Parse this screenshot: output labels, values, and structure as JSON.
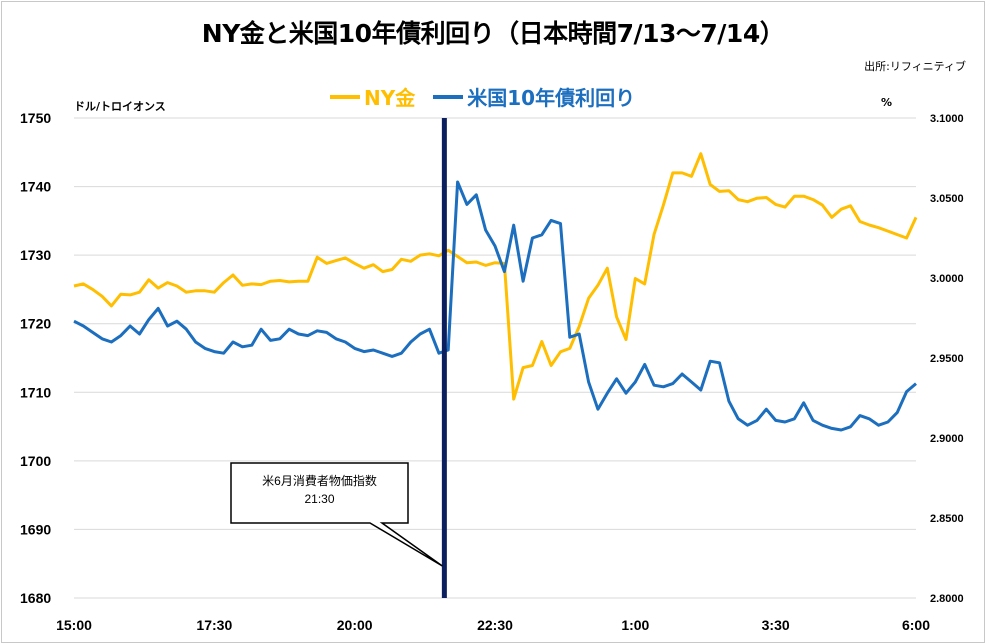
{
  "title": "NY金と米国10年債利回り（日本時間7/13～7/14）",
  "source": "出所:リフィニティブ",
  "left_unit": "ドル/トロイオンス",
  "right_unit": "%",
  "annotation": {
    "line1": "米6月消費者物価指数",
    "line2": "21:30",
    "time_index": 39
  },
  "colors": {
    "gold": "#FFBE00",
    "yield": "#1C6EBE",
    "event_line": "#0B1F5E"
  },
  "chart_data": {
    "type": "line",
    "title": "NY金と米国10年債利回り（日本時間7/13～7/14）",
    "x_ticks": [
      "15:00",
      "17:30",
      "20:00",
      "22:30",
      "1:00",
      "3:30",
      "6:00"
    ],
    "x_tick_positions": [
      0,
      15,
      30,
      45,
      60,
      75,
      90
    ],
    "x_range": [
      0,
      90
    ],
    "x_note": "10-minute intervals from 15:00 (index 0) to 6:00 (index 90)",
    "y_left": {
      "label": "ドル/トロイオンス",
      "range": [
        1680,
        1750
      ],
      "ticks": [
        "1680",
        "1690",
        "1700",
        "1710",
        "1720",
        "1730",
        "1740",
        "1750"
      ]
    },
    "y_right": {
      "label": "%",
      "range": [
        2.8,
        3.1
      ],
      "ticks": [
        "2.8000",
        "2.8500",
        "2.9000",
        "2.9500",
        "3.0000",
        "3.0500",
        "3.1000"
      ]
    },
    "series": [
      {
        "name": "NY金",
        "axis": "left",
        "values": [
          1725.5,
          1725.8,
          1725.0,
          1724.0,
          1722.6,
          1724.3,
          1724.2,
          1724.6,
          1726.4,
          1725.2,
          1726.0,
          1725.5,
          1724.6,
          1724.8,
          1724.8,
          1724.6,
          1726.0,
          1727.1,
          1725.6,
          1725.8,
          1725.7,
          1726.2,
          1726.3,
          1726.1,
          1726.2,
          1726.2,
          1729.7,
          1728.8,
          1729.2,
          1729.6,
          1728.8,
          1728.1,
          1728.6,
          1727.6,
          1727.9,
          1729.4,
          1729.1,
          1730.0,
          1730.2,
          1729.9,
          1730.7,
          1729.8,
          1728.9,
          1729.0,
          1728.5,
          1728.9,
          1728.8,
          1709.0,
          1713.6,
          1713.9,
          1717.4,
          1713.9,
          1715.9,
          1716.4,
          1719.6,
          1723.7,
          1725.6,
          1728.1,
          1721.0,
          1717.7,
          1726.6,
          1725.8,
          1733.0,
          1737.3,
          1742.0,
          1742.0,
          1741.5,
          1744.8,
          1740.3,
          1739.3,
          1739.4,
          1738.1,
          1737.8,
          1738.3,
          1738.4,
          1737.4,
          1737.0,
          1738.6,
          1738.6,
          1738.1,
          1737.3,
          1735.5,
          1736.7,
          1737.2,
          1734.9,
          1734.4,
          1734.0,
          1733.5,
          1733.0,
          1732.5,
          1735.5
        ]
      },
      {
        "name": "米国10年債利回り",
        "axis": "right",
        "values": [
          2.973,
          2.97,
          2.966,
          2.962,
          2.96,
          2.964,
          2.97,
          2.965,
          2.974,
          2.981,
          2.97,
          2.973,
          2.968,
          2.96,
          2.956,
          2.954,
          2.953,
          2.96,
          2.957,
          2.958,
          2.968,
          2.961,
          2.962,
          2.968,
          2.965,
          2.964,
          2.967,
          2.966,
          2.962,
          2.96,
          2.956,
          2.954,
          2.955,
          2.953,
          2.951,
          2.953,
          2.96,
          2.965,
          2.968,
          2.953,
          2.955,
          3.06,
          3.046,
          3.052,
          3.03,
          3.02,
          3.004,
          3.033,
          2.998,
          3.025,
          3.027,
          3.036,
          3.034,
          2.963,
          2.965,
          2.935,
          2.918,
          2.928,
          2.937,
          2.928,
          2.935,
          2.946,
          2.933,
          2.932,
          2.934,
          2.94,
          2.935,
          2.93,
          2.948,
          2.947,
          2.923,
          2.912,
          2.908,
          2.911,
          2.918,
          2.911,
          2.91,
          2.912,
          2.922,
          2.911,
          2.908,
          2.906,
          2.905,
          2.907,
          2.914,
          2.912,
          2.908,
          2.91,
          2.916,
          2.929,
          2.934
        ]
      }
    ],
    "grid": "horizontal",
    "legend_position": "top-center"
  }
}
